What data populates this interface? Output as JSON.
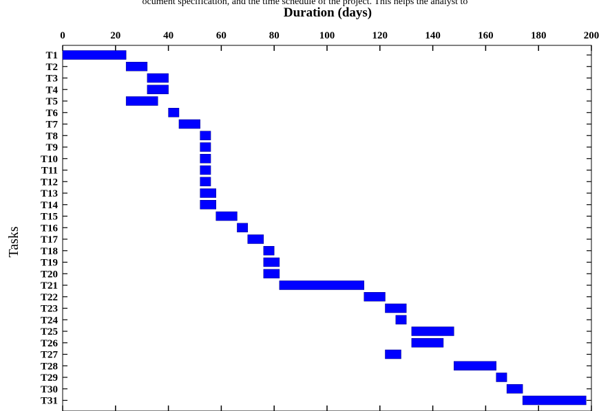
{
  "caption": "ocument specification, and the time schedule of the project. This helps the analyst to",
  "chart_data": {
    "type": "bar",
    "orientation": "horizontal",
    "title": "Duration (days)",
    "xlabel": "Duration (days)",
    "ylabel": "Tasks",
    "xlim": [
      0,
      200
    ],
    "xticks": [
      0,
      20,
      40,
      60,
      80,
      100,
      120,
      140,
      160,
      180,
      200
    ],
    "x_axis_position": "top",
    "grid": false,
    "bar_color": "#0000ff",
    "tasks": [
      {
        "name": "T1",
        "start": 0,
        "end": 24
      },
      {
        "name": "T2",
        "start": 24,
        "end": 32
      },
      {
        "name": "T3",
        "start": 32,
        "end": 40
      },
      {
        "name": "T4",
        "start": 32,
        "end": 40
      },
      {
        "name": "T5",
        "start": 24,
        "end": 36
      },
      {
        "name": "T6",
        "start": 40,
        "end": 44
      },
      {
        "name": "T7",
        "start": 44,
        "end": 52
      },
      {
        "name": "T8",
        "start": 52,
        "end": 56
      },
      {
        "name": "T9",
        "start": 52,
        "end": 56
      },
      {
        "name": "T10",
        "start": 52,
        "end": 56
      },
      {
        "name": "T11",
        "start": 52,
        "end": 56
      },
      {
        "name": "T12",
        "start": 52,
        "end": 56
      },
      {
        "name": "T13",
        "start": 52,
        "end": 58
      },
      {
        "name": "T14",
        "start": 52,
        "end": 58
      },
      {
        "name": "T15",
        "start": 58,
        "end": 66
      },
      {
        "name": "T16",
        "start": 66,
        "end": 70
      },
      {
        "name": "T17",
        "start": 70,
        "end": 76
      },
      {
        "name": "T18",
        "start": 76,
        "end": 80
      },
      {
        "name": "T19",
        "start": 76,
        "end": 82
      },
      {
        "name": "T20",
        "start": 76,
        "end": 82
      },
      {
        "name": "T21",
        "start": 82,
        "end": 114
      },
      {
        "name": "T22",
        "start": 114,
        "end": 122
      },
      {
        "name": "T23",
        "start": 122,
        "end": 130
      },
      {
        "name": "T24",
        "start": 126,
        "end": 130
      },
      {
        "name": "T25",
        "start": 132,
        "end": 148
      },
      {
        "name": "T26",
        "start": 132,
        "end": 144
      },
      {
        "name": "T27",
        "start": 122,
        "end": 128
      },
      {
        "name": "T28",
        "start": 148,
        "end": 164
      },
      {
        "name": "T29",
        "start": 164,
        "end": 168
      },
      {
        "name": "T30",
        "start": 168,
        "end": 174
      },
      {
        "name": "T31",
        "start": 174,
        "end": 198
      }
    ]
  }
}
